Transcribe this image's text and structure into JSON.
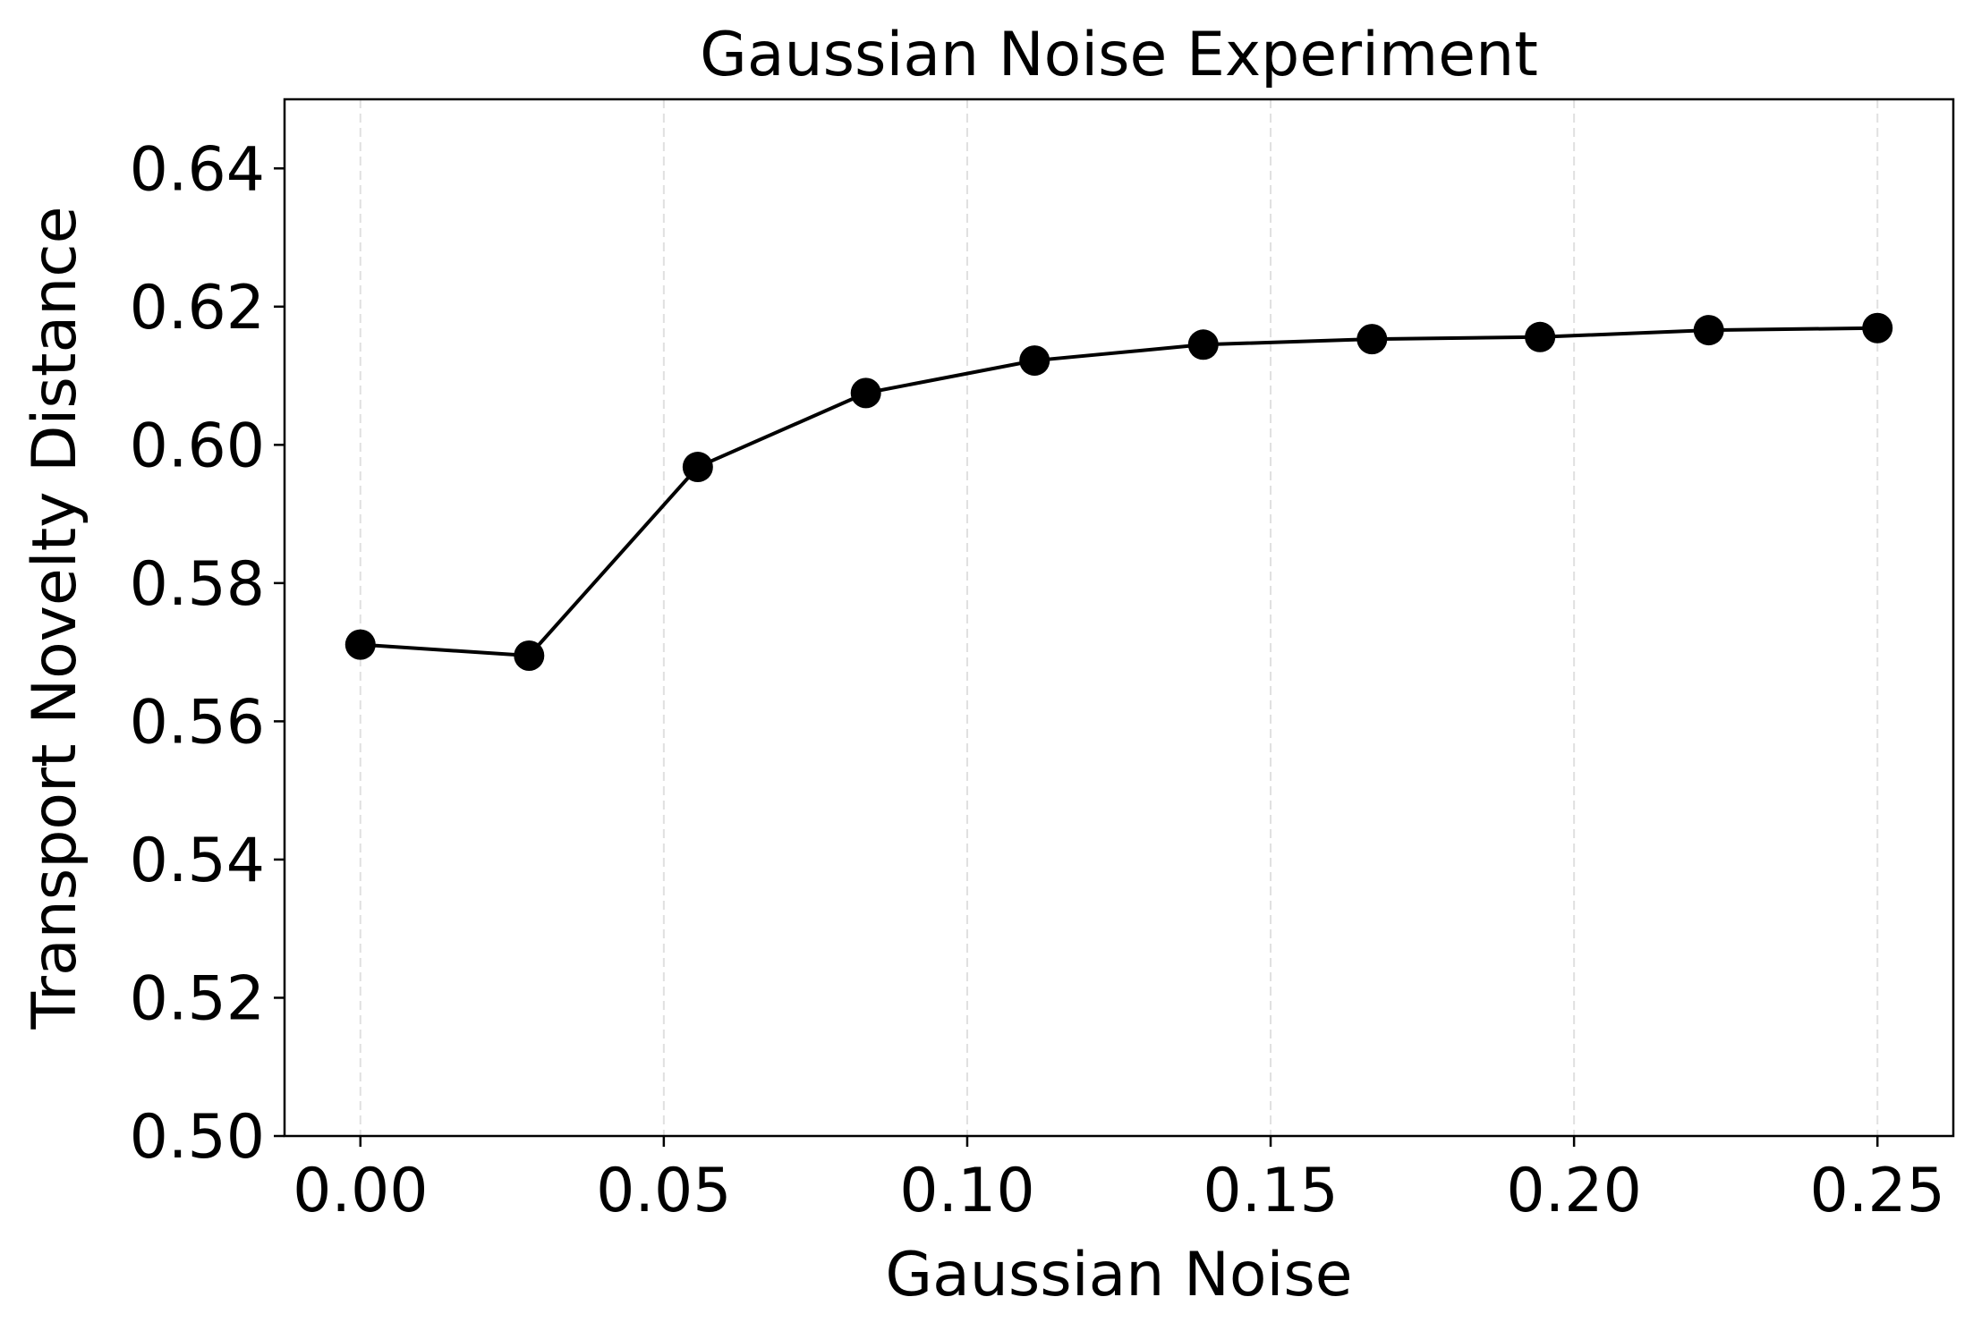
{
  "chart_data": {
    "type": "line",
    "title": "Gaussian Noise Experiment",
    "xlabel": "Gaussian Noise",
    "ylabel": "Transport Novelty Distance",
    "xlim": [
      -0.0125,
      0.2625
    ],
    "ylim": [
      0.5,
      0.65
    ],
    "xticks": [
      "0.00",
      "0.05",
      "0.10",
      "0.15",
      "0.20",
      "0.25"
    ],
    "yticks": [
      "0.50",
      "0.52",
      "0.54",
      "0.56",
      "0.58",
      "0.60",
      "0.62",
      "0.64"
    ],
    "grid": "vertical dashed",
    "series": [
      {
        "color": "#000000",
        "marker": "circle",
        "x": [
          0.0,
          0.0278,
          0.0556,
          0.0833,
          0.1111,
          0.1389,
          0.1667,
          0.1944,
          0.2222,
          0.25
        ],
        "y": [
          0.5711,
          0.5695,
          0.5968,
          0.6075,
          0.6122,
          0.6145,
          0.6153,
          0.6156,
          0.6166,
          0.6169
        ]
      }
    ]
  }
}
